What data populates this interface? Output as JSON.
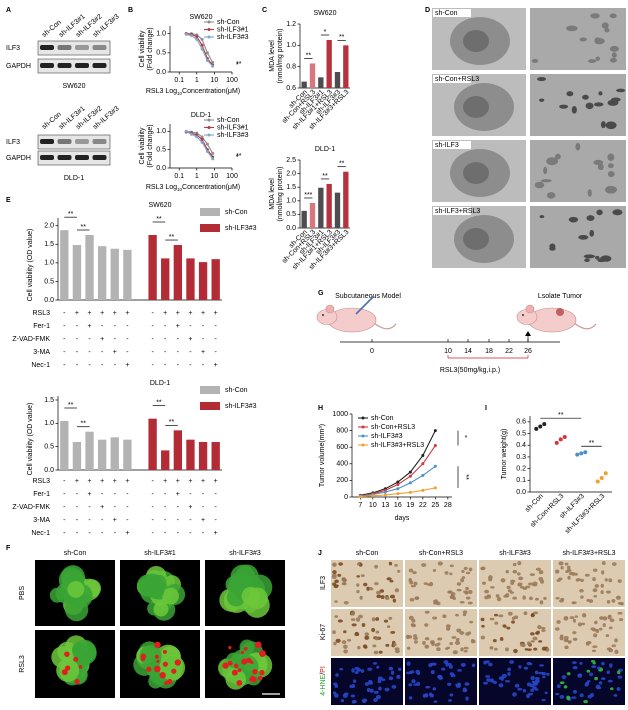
{
  "panel_labels": [
    "A",
    "B",
    "C",
    "D",
    "E",
    "F",
    "G",
    "H",
    "I",
    "J"
  ],
  "blots": [
    {
      "lanes": [
        "sh-Con",
        "sh-ILF3#1",
        "sh-ILF3#2",
        "sh-ILF3#3"
      ],
      "rows": [
        "ILF3",
        "GAPDH"
      ],
      "cell_line": "SW620"
    },
    {
      "lanes": [
        "sh-Con",
        "sh-ILF3#1",
        "sh-ILF3#2",
        "sh-ILF3#3"
      ],
      "rows": [
        "ILF3",
        "GAPDH"
      ],
      "cell_line": "DLD-1"
    }
  ],
  "em": {
    "labels": [
      "sh-Con",
      "sh-Con+RSL3",
      "sh-ILF3",
      "sh-ILF3+RSL3"
    ]
  },
  "spheroids": {
    "columns": [
      "sh-Con",
      "sh-ILF3#1",
      "sh-ILF3#3"
    ],
    "rows": [
      "PBS",
      "RSL3"
    ],
    "scale_bar": "100 μm"
  },
  "model": {
    "start": "Subcutaneous Model",
    "end": "Lsolate Tumor",
    "timeline": [
      0,
      10,
      14,
      18,
      22,
      26
    ],
    "treatment": "RSL3(50mg/kg,i.p.)"
  },
  "ihc": {
    "columns": [
      "sh-Con",
      "sh-Con+RSL3",
      "sh-ILF3#3",
      "sh-ILF3#3+RSL3"
    ],
    "rows": [
      "ILF3",
      "Ki-67"
    ],
    "stain_parts": [
      "4-HNE",
      "/",
      "PI"
    ]
  },
  "chart_data": [
    {
      "type": "line",
      "title": "SW620",
      "log_x": true,
      "x": [
        0.25,
        0.5,
        1,
        2,
        4,
        8
      ],
      "xlim": [
        0.03,
        100
      ],
      "xticks": [
        0.1,
        1,
        10,
        100
      ],
      "ylim": [
        0,
        1.2
      ],
      "yticks": [
        {
          "value": 0,
          "label": "0.0"
        },
        0.5,
        {
          "value": 1,
          "label": "1.0"
        }
      ],
      "ylabel": [
        "Cell viability",
        "(Fold change)"
      ],
      "xlabel_parts": [
        "RSL3 Log",
        "10",
        "Concentration(μM)"
      ],
      "legend": "upper right",
      "annotations": [
        "**",
        "*"
      ],
      "series": [
        {
          "name": "sh-Con",
          "color": "#8c8c8c",
          "values": [
            1.0,
            1.0,
            0.97,
            0.85,
            0.5,
            0.25
          ]
        },
        {
          "name": "sh-ILF3#1",
          "color": "#b03a48",
          "values": [
            1.0,
            0.98,
            0.92,
            0.7,
            0.35,
            0.18
          ]
        },
        {
          "name": "sh-ILF3#3",
          "color": "#7fa7c9",
          "values": [
            0.98,
            0.95,
            0.85,
            0.6,
            0.3,
            0.15
          ]
        }
      ]
    },
    {
      "type": "line",
      "title": "DLD-1",
      "log_x": true,
      "x": [
        0.25,
        0.5,
        1,
        2,
        4,
        8
      ],
      "xlim": [
        0.03,
        100
      ],
      "xticks": [
        0.1,
        1,
        10,
        100
      ],
      "ylim": [
        0,
        1.2
      ],
      "yticks": [
        {
          "value": 0,
          "label": "0.0"
        },
        0.5,
        {
          "value": 1,
          "label": "1.0"
        }
      ],
      "ylabel": [
        "Cell viability",
        "(Fold change)"
      ],
      "xlabel_parts": [
        "RSL3 Log",
        "10",
        "Concentration(μM)"
      ],
      "legend": "upper right",
      "annotations": [
        "**",
        "*"
      ],
      "series": [
        {
          "name": "sh-Con",
          "color": "#8c8c8c",
          "values": [
            1.0,
            0.98,
            0.95,
            0.85,
            0.65,
            0.4
          ]
        },
        {
          "name": "sh-ILF3#1",
          "color": "#b03a48",
          "values": [
            0.98,
            0.95,
            0.9,
            0.78,
            0.5,
            0.3
          ]
        },
        {
          "name": "sh-ILF3#3",
          "color": "#7fa7c9",
          "values": [
            1.0,
            0.92,
            0.85,
            0.7,
            0.45,
            0.25
          ]
        }
      ]
    },
    {
      "type": "bar",
      "title": "SW620",
      "categories": [
        "sh-Con",
        "sh-Con+RSL3",
        "sh-ILF3#1",
        "sh-ILF3#1+RSL3",
        "sh-ILF3#3",
        "sh-ILF3#3+RSL3"
      ],
      "values": [
        0.66,
        0.83,
        0.7,
        1.05,
        0.75,
        1.0
      ],
      "colors": [
        "#4d4d4d",
        "#d9777f",
        "#4d4d4d",
        "#b5333c",
        "#4d4d4d",
        "#b5333c"
      ],
      "ylim": [
        0.6,
        1.2
      ],
      "yticks": [
        0.6,
        0.8,
        {
          "value": 1,
          "label": "1.0"
        },
        1.2
      ],
      "ylabel": [
        "MDA level",
        "(nmol/mg protein)"
      ],
      "annotations": [
        "**",
        "*",
        "**"
      ]
    },
    {
      "type": "bar",
      "title": "DLD-1",
      "categories": [
        "sh-Con",
        "sh-Con+RSL3",
        "sh-ILF3#1",
        "sh-ILF3#1+RSL3",
        "sh-ILF3#3",
        "sh-ILF3#3+RSL3"
      ],
      "values": [
        0.63,
        0.92,
        1.48,
        1.62,
        1.3,
        2.07
      ],
      "colors": [
        "#4d4d4d",
        "#d9777f",
        "#4d4d4d",
        "#b5333c",
        "#4d4d4d",
        "#b5333c"
      ],
      "ylim": [
        0,
        2.5
      ],
      "yticks": [
        {
          "value": 0,
          "label": "0.0"
        },
        0.5,
        {
          "value": 1,
          "label": "1.0"
        },
        1.5,
        {
          "value": 2,
          "label": "2.0"
        },
        2.5
      ],
      "ylabel": [
        "MDA level",
        "(nmol/mg protein)"
      ],
      "annotations": [
        "***",
        "**",
        "**"
      ]
    },
    {
      "type": "grouped_bar",
      "title": "SW620",
      "ylim": [
        0,
        2.1
      ],
      "yticks": [
        {
          "value": 0,
          "label": "0.0"
        },
        0.5,
        {
          "value": 1,
          "label": "1.0"
        },
        1.5,
        {
          "value": 2,
          "label": "2.0"
        }
      ],
      "ylabel": "Cell viability (OD value)",
      "legend": "upper right",
      "annotations": [
        "**",
        "**",
        "**",
        "**"
      ],
      "series": [
        {
          "name": "sh-Con",
          "color": "#b3b3b3",
          "values": [
            1.88,
            1.48,
            1.75,
            1.45,
            1.38,
            1.35
          ]
        },
        {
          "name": "sh-ILF3#3",
          "color": "#b22b35",
          "values": [
            1.75,
            1.12,
            1.48,
            1.12,
            1.02,
            1.1
          ]
        }
      ],
      "treatments": [
        {
          "name": "RSL3",
          "signs": [
            "-",
            "+",
            "+",
            "+",
            "+",
            "+"
          ]
        },
        {
          "name": "Fer-1",
          "signs": [
            "-",
            "-",
            "+",
            "-",
            "-",
            "-"
          ]
        },
        {
          "name": "Z-VAD-FMK",
          "signs": [
            "-",
            "-",
            "-",
            "+",
            "-",
            "-"
          ]
        },
        {
          "name": "3-MA",
          "signs": [
            "-",
            "-",
            "-",
            "-",
            "+",
            "-"
          ]
        },
        {
          "name": "Nec-1",
          "signs": [
            "-",
            "-",
            "-",
            "-",
            "-",
            "+"
          ]
        }
      ]
    },
    {
      "type": "grouped_bar",
      "title": "DLD-1",
      "ylim": [
        0,
        1.5
      ],
      "yticks": [
        {
          "value": 0,
          "label": "0.0"
        },
        0.5,
        {
          "value": 1,
          "label": "1.0"
        },
        1.5
      ],
      "ylabel": "Cell viability (OD value)",
      "legend": "upper right",
      "annotations": [
        "**",
        "**",
        "**",
        "**"
      ],
      "series": [
        {
          "name": "sh-Con",
          "color": "#b3b3b3",
          "values": [
            1.05,
            0.6,
            0.82,
            0.65,
            0.7,
            0.65
          ]
        },
        {
          "name": "sh-ILF3#3",
          "color": "#b22b35",
          "values": [
            1.1,
            0.42,
            0.85,
            0.65,
            0.6,
            0.6
          ]
        }
      ],
      "treatments": [
        {
          "name": "RSL3",
          "signs": [
            "-",
            "+",
            "+",
            "+",
            "+",
            "+"
          ]
        },
        {
          "name": "Fer-1",
          "signs": [
            "-",
            "-",
            "+",
            "-",
            "-",
            "-"
          ]
        },
        {
          "name": "Z-VAD-FMK",
          "signs": [
            "-",
            "-",
            "-",
            "+",
            "-",
            "-"
          ]
        },
        {
          "name": "3-MA",
          "signs": [
            "-",
            "-",
            "-",
            "-",
            "+",
            "-"
          ]
        },
        {
          "name": "Nec-1",
          "signs": [
            "-",
            "-",
            "-",
            "-",
            "-",
            "+"
          ]
        }
      ]
    },
    {
      "type": "line",
      "x": [
        7,
        10,
        13,
        16,
        19,
        22,
        25
      ],
      "xlim": [
        5,
        29
      ],
      "xticks": [
        7,
        10,
        13,
        16,
        19,
        22,
        25,
        28
      ],
      "ylim": [
        0,
        1000
      ],
      "yticks": [
        0,
        200,
        400,
        600,
        800,
        1000
      ],
      "ylabel": "Tumor volume(mm³)",
      "xlabel": "days",
      "legend": "upper left",
      "annotations": [
        "*",
        "**"
      ],
      "series": [
        {
          "name": "sh-Con",
          "color": "#222222",
          "values": [
            20,
            50,
            100,
            180,
            300,
            500,
            800
          ]
        },
        {
          "name": "sh-Con+RSL3",
          "color": "#d0363a",
          "values": [
            15,
            40,
            80,
            150,
            250,
            400,
            620
          ]
        },
        {
          "name": "sh-ILF3#3",
          "color": "#4a90c2",
          "values": [
            10,
            30,
            60,
            100,
            170,
            260,
            370
          ]
        },
        {
          "name": "sh-ILF3#3+RSL3",
          "color": "#f0a030",
          "values": [
            5,
            15,
            25,
            40,
            55,
            80,
            110
          ]
        }
      ]
    },
    {
      "type": "dot",
      "categories": [
        "sh-Con",
        "sh-Con+RSL3",
        "sh-ILF3#3",
        "sh-ILF3#3+RSL3"
      ],
      "values": [
        [
          0.54,
          0.56,
          0.58
        ],
        [
          0.42,
          0.45,
          0.47
        ],
        [
          0.32,
          0.33,
          0.34
        ],
        [
          0.09,
          0.12,
          0.16
        ]
      ],
      "colors": [
        "#222222",
        "#d0363a",
        "#4a90c2",
        "#f0a030"
      ],
      "ylim": [
        0,
        0.65
      ],
      "yticks": [
        {
          "value": 0,
          "label": "0.0"
        },
        0.1,
        0.2,
        0.3,
        0.4,
        0.5,
        0.6
      ],
      "ylabel": "Tumor weight(g)",
      "annotations": [
        "**",
        "**"
      ]
    }
  ]
}
